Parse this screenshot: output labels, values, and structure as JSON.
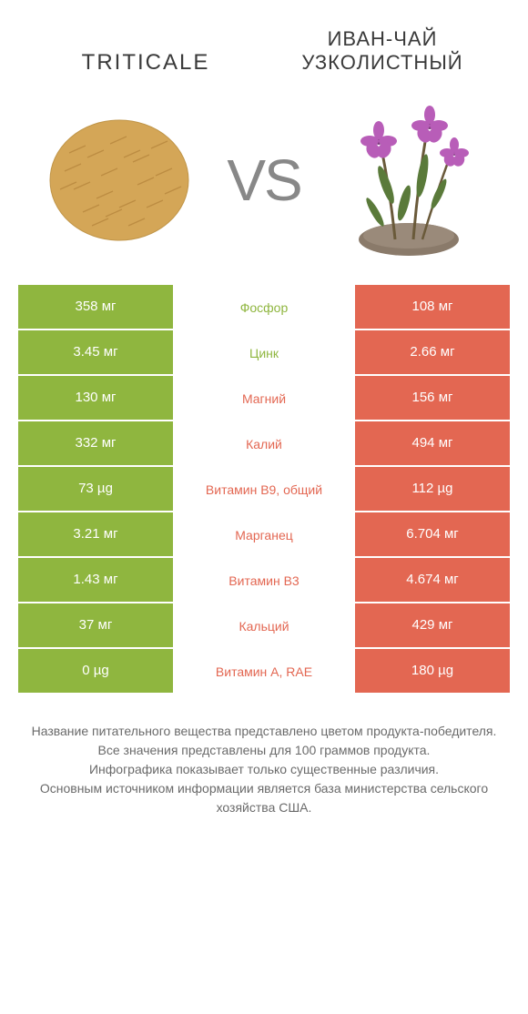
{
  "header": {
    "left_title": "TRITICALE",
    "right_title_line1": "ИВАН-ЧАЙ",
    "right_title_line2": "УЗКОЛИСТНЫЙ"
  },
  "vs_label": "VS",
  "colors": {
    "left_bg": "#8fb63f",
    "right_bg": "#e36752",
    "left_label": "#8fb63f",
    "right_label": "#e36752",
    "grain_fill": "#d4a657",
    "grain_stroke": "#b8883f",
    "flower": "#b85db8",
    "flower_center": "#7a3a7a",
    "leaf": "#5a7a3a",
    "stem": "#6a5a3a",
    "soil": "#8a7a6a"
  },
  "rows": [
    {
      "left": "358 мг",
      "label": "Фосфор",
      "right": "108 мг",
      "winner": "left"
    },
    {
      "left": "3.45 мг",
      "label": "Цинк",
      "right": "2.66 мг",
      "winner": "left"
    },
    {
      "left": "130 мг",
      "label": "Магний",
      "right": "156 мг",
      "winner": "right"
    },
    {
      "left": "332 мг",
      "label": "Калий",
      "right": "494 мг",
      "winner": "right"
    },
    {
      "left": "73 µg",
      "label": "Витамин B9, общий",
      "right": "112 µg",
      "winner": "right"
    },
    {
      "left": "3.21 мг",
      "label": "Марганец",
      "right": "6.704 мг",
      "winner": "right"
    },
    {
      "left": "1.43 мг",
      "label": "Витамин B3",
      "right": "4.674 мг",
      "winner": "right"
    },
    {
      "left": "37 мг",
      "label": "Кальций",
      "right": "429 мг",
      "winner": "right"
    },
    {
      "left": "0 µg",
      "label": "Витамин A, RAE",
      "right": "180 µg",
      "winner": "right"
    }
  ],
  "footer": {
    "line1": "Название питательного вещества представлено цветом продукта-победителя.",
    "line2": "Все значения представлены для 100 граммов продукта.",
    "line3": "Инфографика показывает только существенные различия.",
    "line4": "Основным источником информации является база министерства сельского хозяйства США."
  }
}
